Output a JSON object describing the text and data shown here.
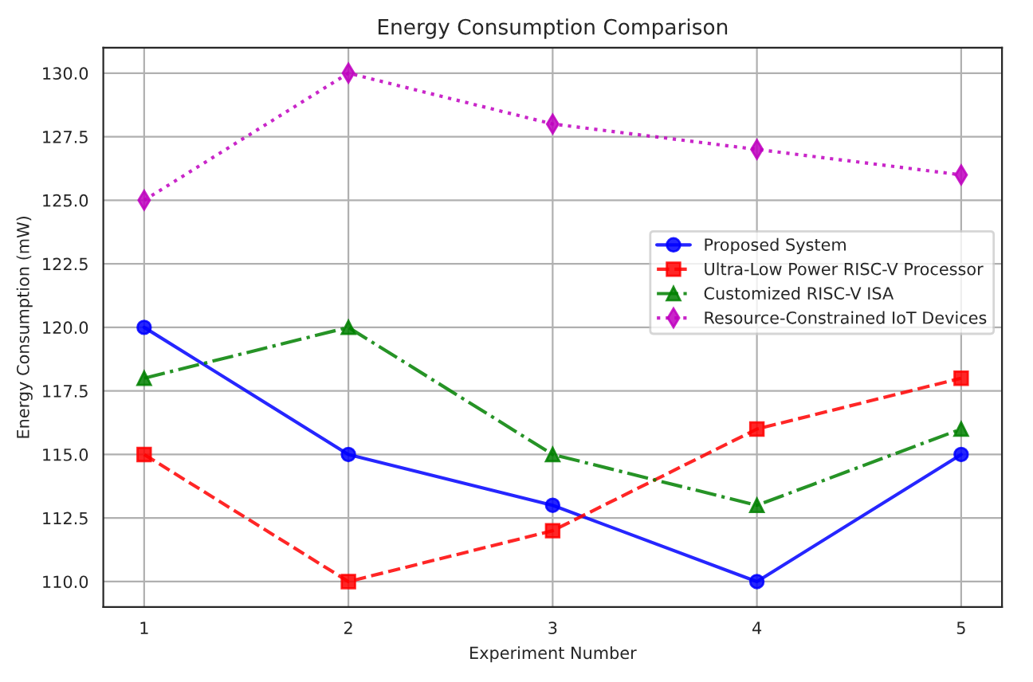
{
  "chart_data": {
    "type": "line",
    "title": "Energy Consumption Comparison",
    "xlabel": "Experiment Number",
    "ylabel": "Energy Consumption (mW)",
    "x": [
      1,
      2,
      3,
      4,
      5
    ],
    "series": [
      {
        "name": "Proposed System",
        "color": "#0000ff",
        "marker": "circle",
        "line_style": "solid",
        "values": [
          120,
          115,
          113,
          110,
          115
        ]
      },
      {
        "name": "Ultra-Low Power RISC-V Processor",
        "color": "#ff0000",
        "marker": "square",
        "line_style": "dashed",
        "values": [
          115,
          110,
          112,
          116,
          118
        ]
      },
      {
        "name": "Customized RISC-V ISA",
        "color": "#008000",
        "marker": "triangle",
        "line_style": "dashdot",
        "values": [
          118,
          120,
          115,
          113,
          116
        ]
      },
      {
        "name": "Resource-Constrained IoT Devices",
        "color": "#bf00bf",
        "marker": "diamond",
        "line_style": "dotted",
        "values": [
          125,
          130,
          128,
          127,
          126
        ]
      }
    ],
    "xlim": [
      0.8,
      5.2
    ],
    "xticks": [
      1,
      2,
      3,
      4,
      5
    ],
    "ylim": [
      109,
      131
    ],
    "yticks": [
      {
        "value": 110,
        "label": "110.0"
      },
      {
        "value": 112.5,
        "label": "112.5"
      },
      {
        "value": 115,
        "label": "115.0"
      },
      {
        "value": 117.5,
        "label": "117.5"
      },
      {
        "value": 120,
        "label": "120.0"
      },
      {
        "value": 122.5,
        "label": "122.5"
      },
      {
        "value": 125,
        "label": "125.0"
      },
      {
        "value": 127.5,
        "label": "127.5"
      },
      {
        "value": 130,
        "label": "130.0"
      }
    ],
    "grid": true,
    "legend": "right"
  }
}
